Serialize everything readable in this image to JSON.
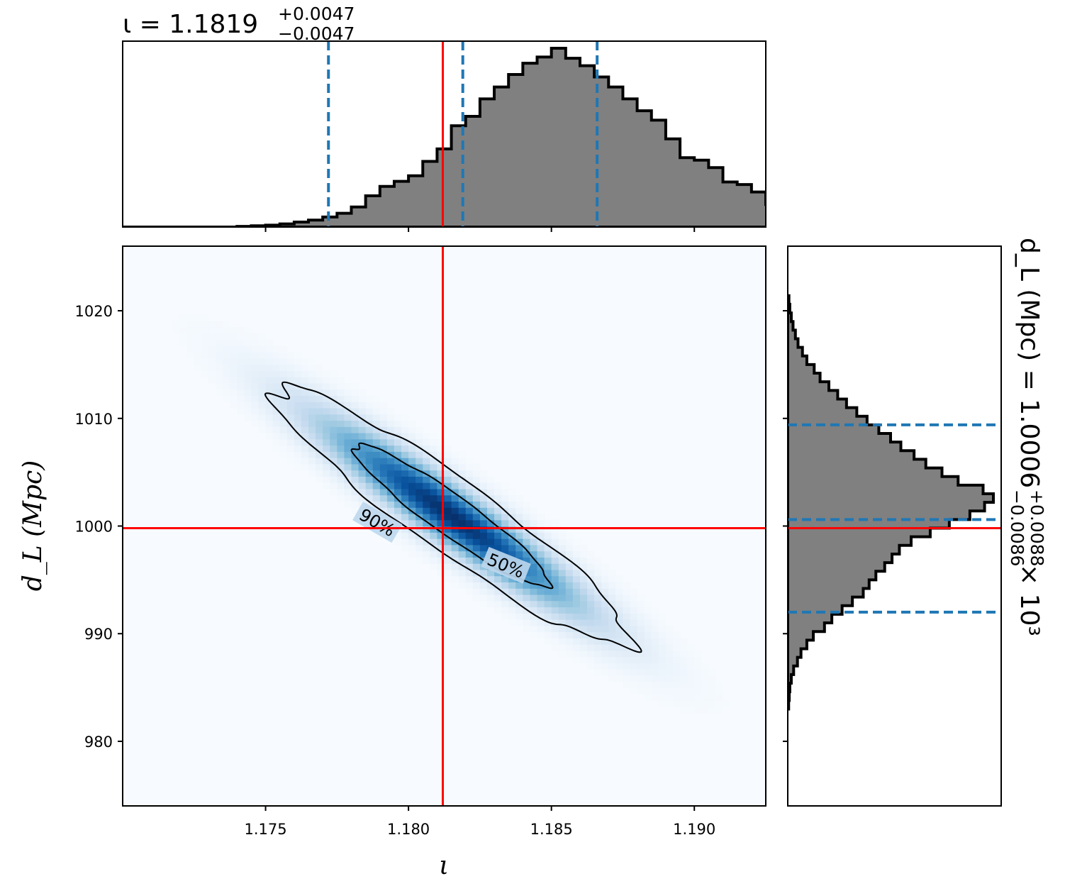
{
  "chart_data": [
    {
      "type": "histogram",
      "panel": "top-marginal",
      "title": {
        "lhs": "ι = 1.1819",
        "sup": "+0.0047",
        "sub": "−0.0047"
      },
      "xlim": [
        1.17,
        1.1925
      ],
      "bin_edges_start": 1.17,
      "bin_width": 0.0005,
      "counts": [
        0,
        0,
        0,
        0,
        0,
        0,
        0,
        0,
        0.1,
        0.2,
        0.3,
        0.5,
        0.8,
        1.1,
        1.6,
        2.2,
        3.2,
        5.0,
        6.5,
        7.3,
        8.2,
        10.5,
        12.5,
        16.2,
        17.7,
        20.5,
        22.4,
        24.4,
        26.2,
        27.2,
        28.6,
        27.0,
        25.8,
        24.0,
        22.4,
        20.5,
        18.6,
        17.1,
        14.1,
        11.1,
        10.7,
        9.5,
        7.2,
        6.8,
        5.6,
        3.6,
        2.9,
        2.2,
        1.4,
        0.8,
        0.5,
        0.2,
        0.1,
        0.05,
        0,
        0,
        0,
        0,
        0,
        0,
        0,
        0,
        0,
        0,
        0,
        0
      ],
      "quantile_lines": [
        1.1772,
        1.1819,
        1.1866
      ],
      "truth": 1.1812,
      "colors": {
        "fill": "#808080",
        "edge": "#000000",
        "quantile": "#1f77b4",
        "truth": "#ff0000"
      }
    },
    {
      "type": "heatmap",
      "panel": "joint",
      "xlabel": "ι",
      "ylabel": "d_L (Mpc)",
      "xlim": [
        1.17,
        1.1925
      ],
      "ylim": [
        974,
        1026
      ],
      "xticks": [
        "1.175",
        "1.180",
        "1.185",
        "1.190"
      ],
      "xtick_values": [
        1.175,
        1.18,
        1.185,
        1.19
      ],
      "yticks": [
        "980",
        "990",
        "1000",
        "1010",
        "1020"
      ],
      "ytick_values": [
        980,
        990,
        1000,
        1010,
        1020
      ],
      "truth": {
        "x": 1.1812,
        "y": 999.8
      },
      "density": {
        "center": [
          1.1815,
          1001.0
        ],
        "sx": 0.0029,
        "sy": 5.6,
        "corr": -0.94
      },
      "contour_levels": [
        "50%",
        "90%"
      ],
      "colormap": "Blues",
      "colors": {
        "contour": "#000000",
        "truth": "#ff0000"
      }
    },
    {
      "type": "histogram",
      "panel": "right-marginal",
      "orientation": "horizontal",
      "label": {
        "lhs": "d_L (Mpc) = 1.0006",
        "sup": "+0.0088",
        "sub": "−0.0086",
        "rhs": "× 10³"
      },
      "ylim": [
        974,
        1026
      ],
      "bin_edges_start": 983,
      "bin_width": 0.8,
      "counts": [
        0.3,
        0.5,
        0.7,
        1.2,
        2.0,
        3.3,
        4.5,
        6.5,
        8.7,
        12.5,
        15.0,
        18.5,
        22.0,
        25.7,
        27.7,
        30.0,
        33.0,
        35.5,
        38.0,
        42.0,
        48.5,
        55.0,
        62.0,
        67.0,
        70.0,
        66.5,
        58.0,
        52.5,
        47.0,
        43.0,
        38.5,
        35.0,
        31.0,
        27.0,
        23.5,
        20.0,
        17.0,
        14.0,
        11.0,
        9.0,
        6.5,
        5.0,
        3.5,
        2.6,
        1.8,
        1.2,
        0.7,
        0.4
      ],
      "quantile_lines": [
        992.0,
        1000.6,
        1009.4
      ],
      "truth": 999.8,
      "colors": {
        "fill": "#808080",
        "edge": "#000000",
        "quantile": "#1f77b4",
        "truth": "#ff0000"
      }
    }
  ]
}
